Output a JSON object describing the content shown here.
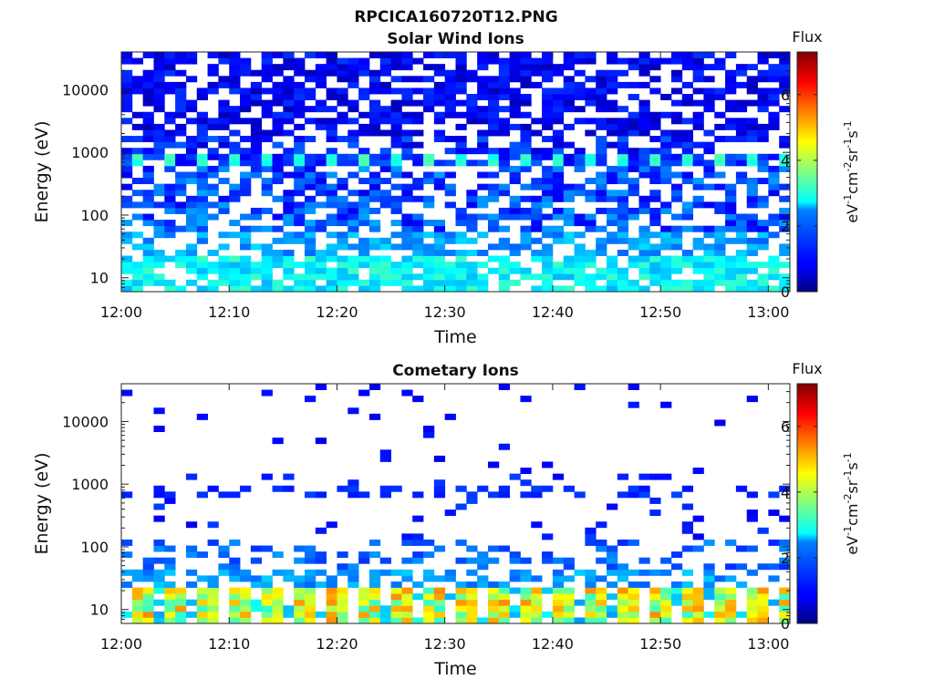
{
  "figure": {
    "title": "RPCICA160720T12.PNG"
  },
  "chart_data": [
    {
      "type": "heatmap",
      "title": "Solar Wind Ions",
      "xlabel": "Time",
      "ylabel": "Energy (eV)",
      "x_ticks": [
        "12:00",
        "12:10",
        "12:20",
        "12:30",
        "12:40",
        "12:50",
        "13:00"
      ],
      "x_tick_minutes": [
        0,
        10,
        20,
        30,
        40,
        50,
        60
      ],
      "xlim_minutes": [
        0,
        62
      ],
      "y_scale": "log",
      "y_ticks": [
        "10",
        "100",
        "1000",
        "10000"
      ],
      "y_tick_values": [
        10,
        100,
        1000,
        10000
      ],
      "ylim": [
        6,
        40000
      ],
      "colorbar": {
        "label": "Flux",
        "unit": "eV-1cm-2sr-1s-1",
        "ticks": [
          "0",
          "2",
          "4",
          "6"
        ],
        "range": [
          0,
          7.3
        ],
        "colormap": "jet"
      },
      "time_bins": 62,
      "energy_bins": 40,
      "z_description": "Sparse low flux (~0.5-1.5) at high energies, periodic enhancement (~2.5-3) near 800 eV, increasing flux (~2-3) below 30 eV"
    },
    {
      "type": "heatmap",
      "title": "Cometary Ions",
      "xlabel": "Time",
      "ylabel": "Energy (eV)",
      "x_ticks": [
        "12:00",
        "12:10",
        "12:20",
        "12:30",
        "12:40",
        "12:50",
        "13:00"
      ],
      "x_tick_minutes": [
        0,
        10,
        20,
        30,
        40,
        50,
        60
      ],
      "xlim_minutes": [
        0,
        62
      ],
      "y_scale": "log",
      "y_ticks": [
        "10",
        "100",
        "1000",
        "10000"
      ],
      "y_tick_values": [
        10,
        100,
        1000,
        10000
      ],
      "ylim": [
        6,
        40000
      ],
      "colorbar": {
        "label": "Flux",
        "unit": "eV-1cm-2sr-1s-1",
        "ticks": [
          "0",
          "2",
          "4",
          "6"
        ],
        "range": [
          0,
          7.3
        ],
        "colormap": "jet"
      },
      "time_bins": 62,
      "energy_bins": 40,
      "z_description": "Very sparse (~1) above 100 eV, band near 800 eV, periodic strong flux (~3-5.5) between 7 and 25 eV"
    }
  ]
}
